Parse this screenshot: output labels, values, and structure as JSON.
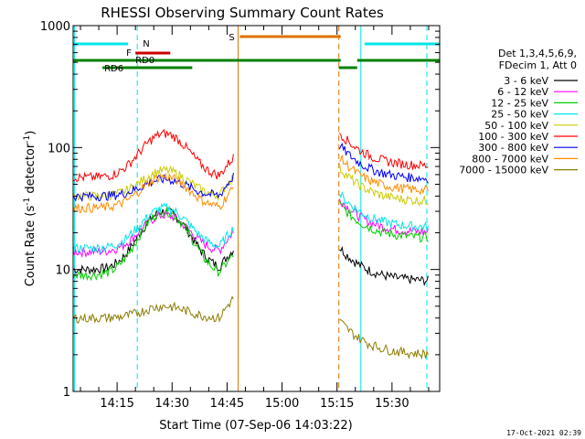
{
  "chart_data": {
    "type": "line",
    "title": "RHESSI Observing Summary Count Rates",
    "xlabel": "Start Time (07-Sep-06 14:03:22)",
    "ylabel": "Count Rate (s",
    "ylabel_sup": "-1",
    "ylabel_mid": " detector",
    "ylabel_sup2": "-1",
    "ylabel_end": ")",
    "yscale": "log",
    "ylim": [
      1,
      1000
    ],
    "xlim_minutes": [
      0,
      100
    ],
    "x_ticks": [
      {
        "label": "14:15",
        "minute": 12
      },
      {
        "label": "14:30",
        "minute": 27
      },
      {
        "label": "14:45",
        "minute": 42
      },
      {
        "label": "15:00",
        "minute": 57
      },
      {
        "label": "15:15",
        "minute": 72
      },
      {
        "label": "15:30",
        "minute": 87
      }
    ],
    "y_ticks": [
      {
        "label": "1",
        "value": 1
      },
      {
        "label": "10",
        "value": 10
      },
      {
        "label": "100",
        "value": 100
      },
      {
        "label": "1000",
        "value": 1000
      }
    ],
    "legend_header": [
      "Det 1,3,4,5,6,9,",
      "FDecim 1, Att 0"
    ],
    "series": [
      {
        "name": "3 - 6 keV",
        "color": "#000000",
        "base": 10,
        "peak": 30,
        "post": 8
      },
      {
        "name": "6 - 12 keV",
        "color": "#ff00ff",
        "base": 14,
        "peak": 28,
        "post": 20
      },
      {
        "name": "12 - 25 keV",
        "color": "#00cc00",
        "base": 9,
        "peak": 30,
        "post": 18
      },
      {
        "name": "25 - 50 keV",
        "color": "#00e5e5",
        "base": 15,
        "peak": 32,
        "post": 22
      },
      {
        "name": "50 - 100 keV",
        "color": "#cccc00",
        "base": 40,
        "peak": 65,
        "post": 36
      },
      {
        "name": "100 - 300 keV",
        "color": "#ff0000",
        "base": 57,
        "peak": 130,
        "post": 70
      },
      {
        "name": "300 - 800 keV",
        "color": "#0000ff",
        "base": 40,
        "peak": 55,
        "post": 55
      },
      {
        "name": "800 - 7000 keV",
        "color": "#ff8c00",
        "base": 32,
        "peak": 58,
        "post": 44
      },
      {
        "name": "7000 - 15000 keV",
        "color": "#8b7d00",
        "base": 4,
        "peak": 5,
        "post": 2
      }
    ],
    "flags": [
      {
        "label": "N",
        "color": "#00e5e5"
      },
      {
        "label": "F",
        "color": "#cc0000"
      },
      {
        "label": "RD0",
        "color": "#008000"
      },
      {
        "label": "RD6",
        "color": "#008000"
      },
      {
        "label": "S",
        "color": "#e07000"
      }
    ]
  },
  "footer": {
    "timestamp": "17-Oct-2021 02:39"
  }
}
